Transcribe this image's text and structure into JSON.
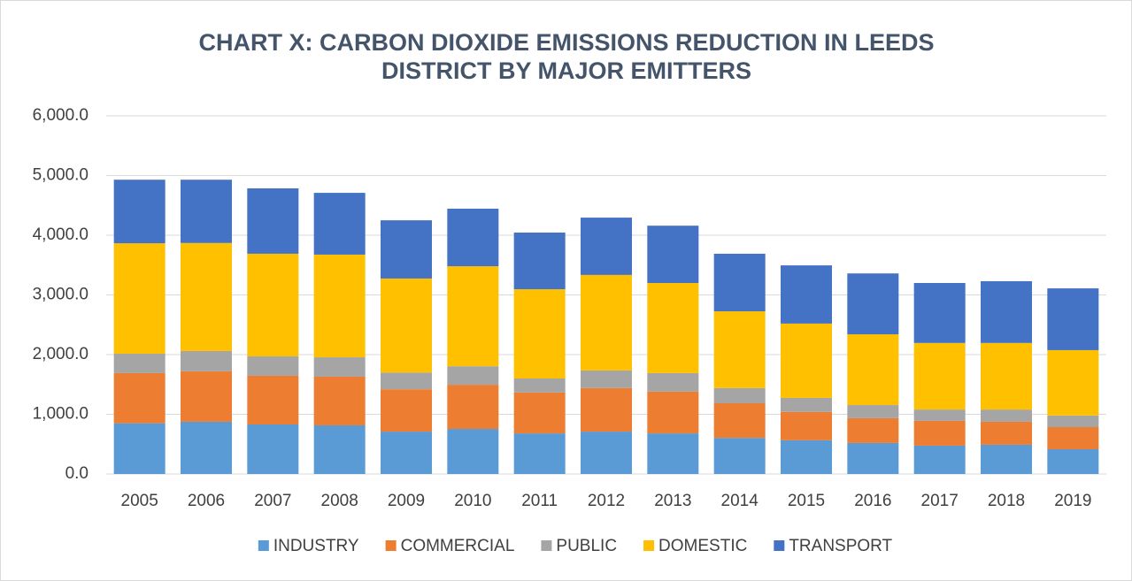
{
  "chart_data": {
    "type": "stacked_bar",
    "title": "CHART X: CARBON DIOXIDE EMISSIONS REDUCTION IN LEEDS DISTRICT BY MAJOR EMITTERS",
    "categories": [
      "2005",
      "2006",
      "2007",
      "2008",
      "2009",
      "2010",
      "2011",
      "2012",
      "2013",
      "2014",
      "2015",
      "2016",
      "2017",
      "2018",
      "2019"
    ],
    "series": [
      {
        "name": "INDUSTRY",
        "color": "#5b9bd5",
        "values": [
          850,
          875,
          830,
          815,
          710,
          755,
          680,
          710,
          680,
          605,
          565,
          520,
          475,
          490,
          415
        ]
      },
      {
        "name": "COMMERCIAL",
        "color": "#ed7d31",
        "values": [
          840,
          845,
          815,
          815,
          710,
          740,
          685,
          730,
          700,
          580,
          475,
          415,
          415,
          385,
          370
        ]
      },
      {
        "name": "PUBLIC",
        "color": "#a5a5a5",
        "values": [
          325,
          340,
          325,
          325,
          280,
          310,
          235,
          295,
          310,
          255,
          235,
          220,
          190,
          205,
          195
        ]
      },
      {
        "name": "DOMESTIC",
        "color": "#ffc000",
        "values": [
          1850,
          1810,
          1720,
          1720,
          1575,
          1675,
          1495,
          1600,
          1510,
          1285,
          1245,
          1185,
          1115,
          1115,
          1095
        ]
      },
      {
        "name": "TRANSPORT",
        "color": "#4472c4",
        "values": [
          1065,
          1060,
          1095,
          1035,
          975,
          965,
          950,
          960,
          960,
          965,
          975,
          1020,
          1005,
          1035,
          1035
        ]
      }
    ],
    "ylim": [
      0,
      6000
    ],
    "yticks": [
      {
        "value": 0,
        "label": "0.0"
      },
      {
        "value": 1000,
        "label": "1,000.0"
      },
      {
        "value": 2000,
        "label": "2,000.0"
      },
      {
        "value": 3000,
        "label": "3,000.0"
      },
      {
        "value": 4000,
        "label": "4,000.0"
      },
      {
        "value": 5000,
        "label": "5,000.0"
      },
      {
        "value": 6000,
        "label": "6,000.0"
      }
    ],
    "grid": true,
    "legend": "bottom"
  }
}
